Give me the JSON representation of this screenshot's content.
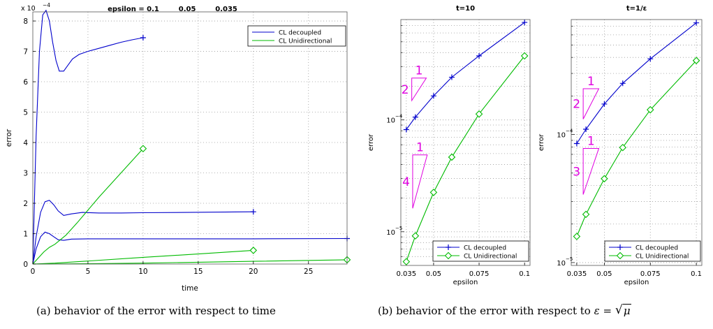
{
  "captions": {
    "a": "(a) behavior of the error with respect to time",
    "b_text": "(b) behavior of the error with respect to",
    "b_math_eps": "ε",
    "b_math_eq": "=",
    "b_math_mu": "μ"
  },
  "colors": {
    "decoupled": "#0000cc",
    "unidirectional": "#00bb00",
    "slope": "#e000e0",
    "grid": "#9a9a9a"
  },
  "chart_data": [
    {
      "type": "line",
      "title": "epsilon = 0.1        0.05        0.035",
      "xlabel": "time",
      "ylabel": "error",
      "y_exponent_label": "x 10",
      "y_exponent_power": "−4",
      "xlim": [
        0,
        28.5
      ],
      "ylim": [
        0,
        8.3
      ],
      "xticks": [
        "0",
        "5",
        "10",
        "15",
        "20",
        "25"
      ],
      "yticks": [
        "0",
        "1",
        "2",
        "3",
        "4",
        "5",
        "6",
        "7",
        "8"
      ],
      "grid": "dotted",
      "legend_position": "top-right",
      "legend": [
        "CL decoupled",
        "CL Unidirectional"
      ],
      "series": [
        {
          "name": "CL decoupled",
          "epsilon": 0.1,
          "x": [
            0,
            0.3,
            0.6,
            0.9,
            1.2,
            1.5,
            1.8,
            2.1,
            2.4,
            2.8,
            3.2,
            3.6,
            4.2,
            5,
            6,
            7,
            8,
            9,
            10
          ],
          "y": [
            0,
            4.2,
            7.0,
            8.2,
            8.35,
            8.0,
            7.3,
            6.7,
            6.35,
            6.35,
            6.55,
            6.75,
            6.9,
            7.0,
            7.1,
            7.2,
            7.3,
            7.38,
            7.45
          ],
          "end_marker_x": 10
        },
        {
          "name": "CL decoupled",
          "epsilon": 0.05,
          "x": [
            0,
            0.3,
            0.7,
            1.1,
            1.5,
            1.9,
            2.3,
            2.8,
            3.5,
            4.5,
            6,
            8,
            10,
            14,
            20
          ],
          "y": [
            0,
            0.9,
            1.7,
            2.05,
            2.1,
            1.95,
            1.75,
            1.6,
            1.65,
            1.7,
            1.68,
            1.68,
            1.69,
            1.7,
            1.72
          ],
          "end_marker_x": 20
        },
        {
          "name": "CL decoupled",
          "epsilon": 0.035,
          "x": [
            0,
            0.3,
            0.7,
            1.1,
            1.5,
            1.9,
            2.3,
            2.8,
            3.5,
            5,
            10,
            20,
            28.5
          ],
          "y": [
            0,
            0.5,
            0.9,
            1.05,
            1.0,
            0.9,
            0.8,
            0.78,
            0.82,
            0.83,
            0.83,
            0.83,
            0.84
          ],
          "end_marker_x": 28.5
        },
        {
          "name": "CL Unidirectional",
          "epsilon": 0.1,
          "x": [
            0,
            0.5,
            1.0,
            1.5,
            2.0,
            3,
            4,
            6,
            8,
            10
          ],
          "y": [
            0,
            0.2,
            0.4,
            0.55,
            0.65,
            0.95,
            1.35,
            2.2,
            3.0,
            3.8
          ],
          "end_marker_x": 10
        },
        {
          "name": "CL Unidirectional",
          "epsilon": 0.05,
          "x": [
            0,
            2,
            5,
            10,
            15,
            20
          ],
          "y": [
            0,
            0.03,
            0.1,
            0.22,
            0.33,
            0.45
          ],
          "end_marker_x": 20
        },
        {
          "name": "CL Unidirectional",
          "epsilon": 0.035,
          "x": [
            0,
            5,
            10,
            15,
            20,
            28.5
          ],
          "y": [
            0,
            0.01,
            0.03,
            0.06,
            0.09,
            0.14
          ],
          "end_marker_x": 28.5
        }
      ]
    },
    {
      "type": "line",
      "title": "t=10",
      "xlabel": "epsilon",
      "ylabel": "error",
      "yscale": "log",
      "xlim": [
        0.032,
        0.103
      ],
      "ylim": [
        5e-06,
        0.00079
      ],
      "xticks": [
        0.035,
        0.05,
        0.075,
        0.1
      ],
      "xtick_labels": [
        "0.035",
        "0.05",
        "0.075",
        "0.1"
      ],
      "ytick_labels": [
        {
          "base": "10",
          "exp": "−4",
          "value": 0.0001
        },
        {
          "base": "10",
          "exp": "−5",
          "value": 1e-05
        }
      ],
      "grid": "dotted",
      "legend_position": "bottom-right",
      "legend": [
        "CL decoupled",
        "CL Unidirectional"
      ],
      "series": [
        {
          "name": "CL decoupled",
          "x": [
            0.035,
            0.04,
            0.05,
            0.06,
            0.075,
            0.1
          ],
          "y": [
            8.2e-05,
            0.000106,
            0.000164,
            0.000241,
            0.000374,
            0.000745
          ]
        },
        {
          "name": "CL Unidirectional",
          "x": [
            0.035,
            0.04,
            0.05,
            0.06,
            0.075,
            0.1
          ],
          "y": [
            5.4e-06,
            9.2e-06,
            2.25e-05,
            4.65e-05,
            0.000113,
            0.000374
          ]
        }
      ],
      "slope_triangles": [
        {
          "rise": "2",
          "run": "1",
          "x0": 0.038,
          "x1": 0.046,
          "y_low": 0.000149,
          "y_high": 0.000237
        },
        {
          "rise": "4",
          "run": "1",
          "x0": 0.0385,
          "x1": 0.0465,
          "y_low": 1.62e-05,
          "y_high": 4.87e-05
        }
      ]
    },
    {
      "type": "line",
      "title": "t=1/ε",
      "xlabel": "epsilon",
      "ylabel": "error",
      "yscale": "log",
      "xlim": [
        0.032,
        0.103
      ],
      "ylim": [
        9.5e-06,
        0.00079
      ],
      "xticks": [
        0.035,
        0.05,
        0.075,
        0.1
      ],
      "xtick_labels": [
        "0.035",
        "0.05",
        "0.075",
        "0.1"
      ],
      "ytick_labels": [
        {
          "base": "10",
          "exp": "−4",
          "value": 0.0001
        },
        {
          "base": "10",
          "exp": "−5",
          "value": 1e-05
        }
      ],
      "grid": "dotted",
      "legend_position": "bottom-right",
      "legend": [
        "CL decoupled",
        "CL Unidirectional"
      ],
      "series": [
        {
          "name": "CL decoupled",
          "x": [
            0.035,
            0.04,
            0.05,
            0.06,
            0.075,
            0.1
          ],
          "y": [
            8.5e-05,
            0.00011,
            0.000173,
            0.000251,
            0.00039,
            0.000745
          ]
        },
        {
          "name": "CL Unidirectional",
          "x": [
            0.035,
            0.04,
            0.05,
            0.06,
            0.075,
            0.1
          ],
          "y": [
            1.6e-05,
            2.38e-05,
            4.52e-05,
            7.91e-05,
            0.000156,
            0.000378
          ]
        }
      ],
      "slope_triangles": [
        {
          "rise": "2",
          "run": "1",
          "x0": 0.0385,
          "x1": 0.047,
          "y_low": 0.000132,
          "y_high": 0.000228
        },
        {
          "rise": "3",
          "run": "1",
          "x0": 0.0385,
          "x1": 0.047,
          "y_low": 3.4e-05,
          "y_high": 7.79e-05
        }
      ]
    }
  ]
}
